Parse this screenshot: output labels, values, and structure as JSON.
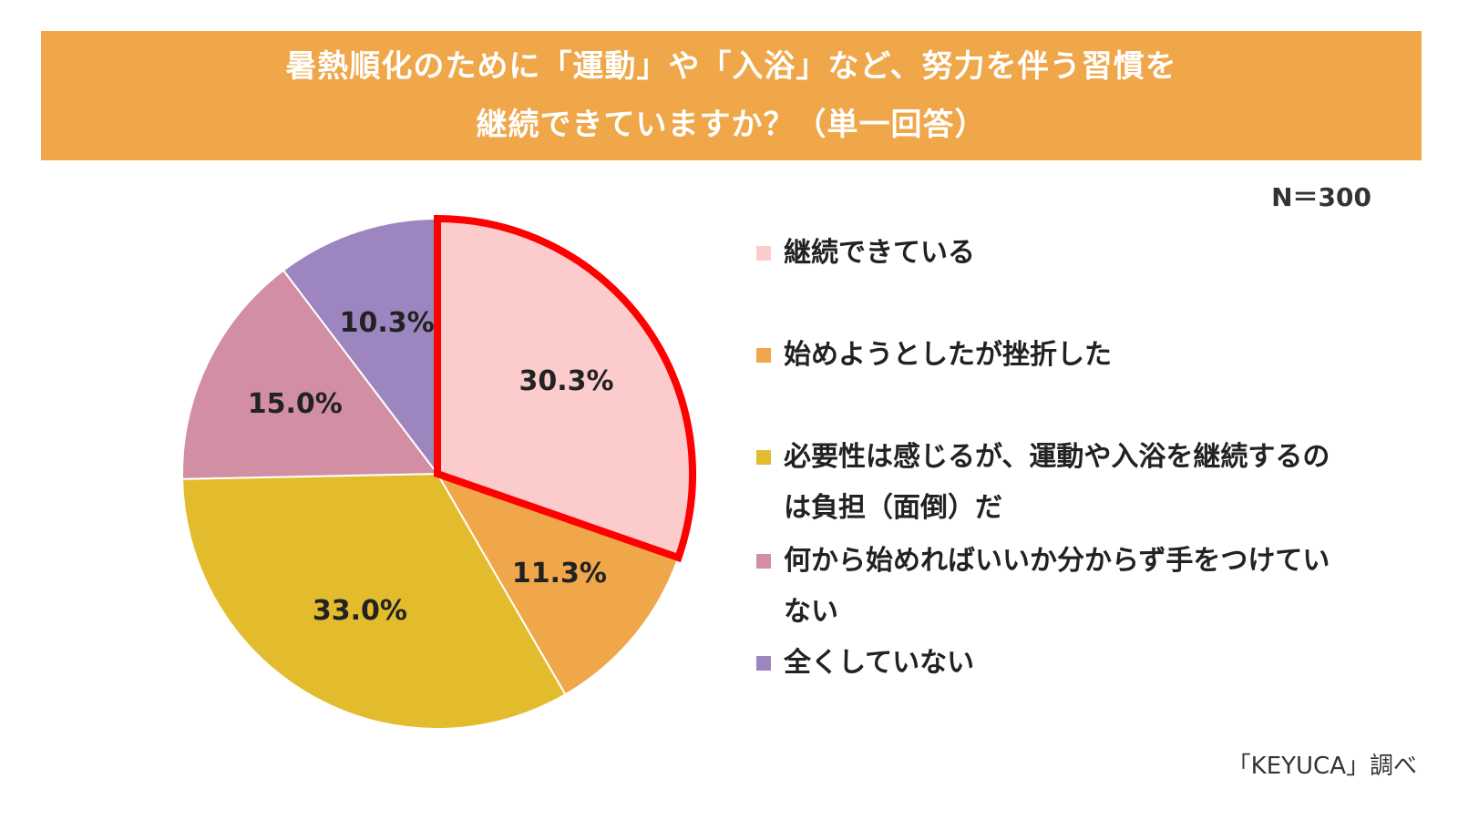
{
  "header": {
    "title_line1": "暑熱順化のために「運動」や「入浴」など、努力を伴う習慣を",
    "title_line2": "継続できていますか？（単一回答）"
  },
  "sample_size": "N＝300",
  "source": "「KEYUCA」調べ",
  "colors": {
    "banner": "#efa74a",
    "highlight_border": "#ff0000"
  },
  "chart_data": {
    "type": "pie",
    "title": "暑熱順化のために「運動」や「入浴」など、努力を伴う習慣を継続できていますか？（単一回答）",
    "unit": "%",
    "start_angle": "12 o'clock",
    "direction": "clockwise",
    "highlighted": "継続できている",
    "legend_position": "right",
    "slices": [
      {
        "label": "継続できている",
        "value": 30.3,
        "display": "30.3%",
        "color": "#fccbcb"
      },
      {
        "label": "始めようとしたが挫折した",
        "value": 11.3,
        "display": "11.3%",
        "color": "#efa74a"
      },
      {
        "label": "必要性は感じるが、運動や入浴を継続するのは負担（面倒）だ",
        "value": 33.0,
        "display": "33.0%",
        "color": "#e3bc2d"
      },
      {
        "label": "何から始めればいいか分からず手をつけていない",
        "value": 15.0,
        "display": "15.0%",
        "color": "#d28ea2"
      },
      {
        "label": "全くしていない",
        "value": 10.3,
        "display": "10.3%",
        "color": "#9d86c0"
      }
    ]
  }
}
